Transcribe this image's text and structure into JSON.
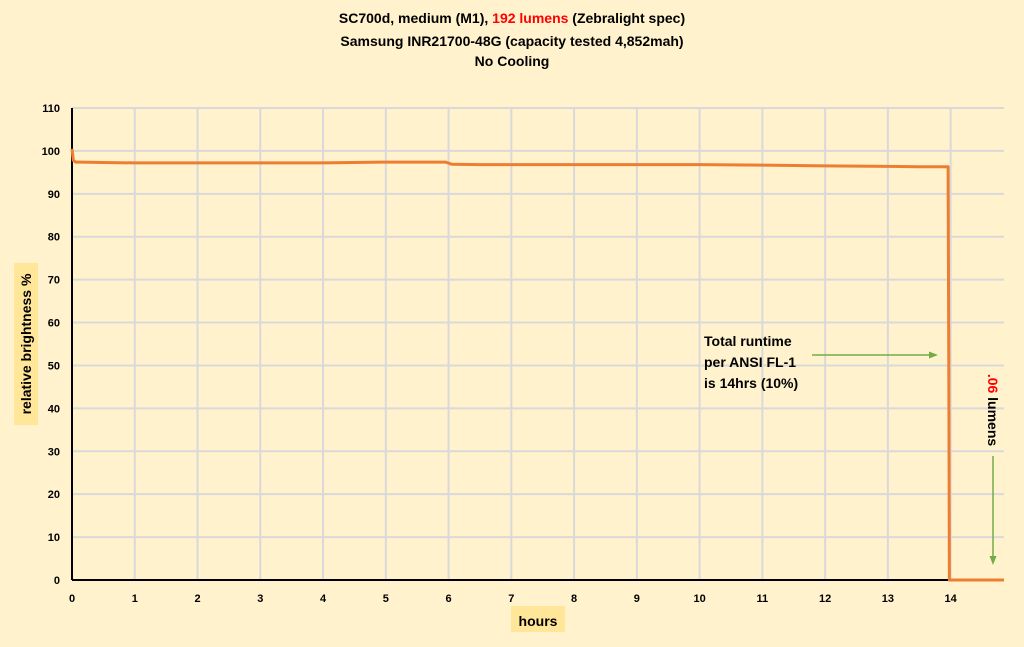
{
  "chart_data": {
    "type": "line",
    "title_lines": [
      {
        "parts": [
          {
            "text": "SC700d, medium (M1), ",
            "color": "#000000"
          },
          {
            "text": "192 lumens",
            "color": "#FF0000"
          },
          {
            "text": " (Zebralight spec)",
            "color": "#000000"
          }
        ]
      },
      {
        "parts": [
          {
            "text": "Samsung INR21700-48G (capacity tested 4,852mah)",
            "color": "#000000"
          }
        ]
      },
      {
        "parts": [
          {
            "text": "No Cooling",
            "color": "#000000"
          }
        ]
      }
    ],
    "xlabel": "hours",
    "ylabel": "relative brightness  %",
    "xlim": [
      0,
      14.85
    ],
    "ylim": [
      0,
      110
    ],
    "x_ticks": [
      0,
      1,
      2,
      3,
      4,
      5,
      6,
      7,
      8,
      9,
      10,
      11,
      12,
      13,
      14
    ],
    "y_ticks": [
      0,
      10,
      20,
      30,
      40,
      50,
      60,
      70,
      80,
      90,
      100,
      110
    ],
    "grid": true,
    "series": [
      {
        "color": "#ED7D31",
        "x": [
          0,
          0.02,
          0.06,
          0.15,
          0.5,
          1,
          2,
          3,
          4,
          5,
          5.95,
          6.05,
          6.5,
          7,
          8,
          9,
          10,
          11,
          12,
          13,
          13.5,
          13.96,
          13.97,
          13.98,
          14.3,
          14.85
        ],
        "y": [
          100.5,
          97.8,
          97.4,
          97.4,
          97.3,
          97.2,
          97.2,
          97.2,
          97.2,
          97.4,
          97.4,
          96.9,
          96.8,
          96.8,
          96.8,
          96.8,
          96.8,
          96.7,
          96.5,
          96.4,
          96.3,
          96.3,
          50,
          0,
          0,
          0
        ]
      }
    ],
    "annotations": [
      {
        "lines": [
          "Total runtime",
          "per ANSI FL-1",
          "is 14hrs (10%)"
        ],
        "color": "#000000"
      },
      {
        "parts": [
          {
            "text": ".06",
            "color": "#FF0000"
          },
          {
            "text": " lumens",
            "color": "#000000"
          }
        ],
        "rotation": "vertical"
      }
    ],
    "arrow_color": "#70AD47",
    "axis_title_bg": "#FFE699",
    "background": "#FFF2CC",
    "grid_color": "#D9D9D9"
  }
}
